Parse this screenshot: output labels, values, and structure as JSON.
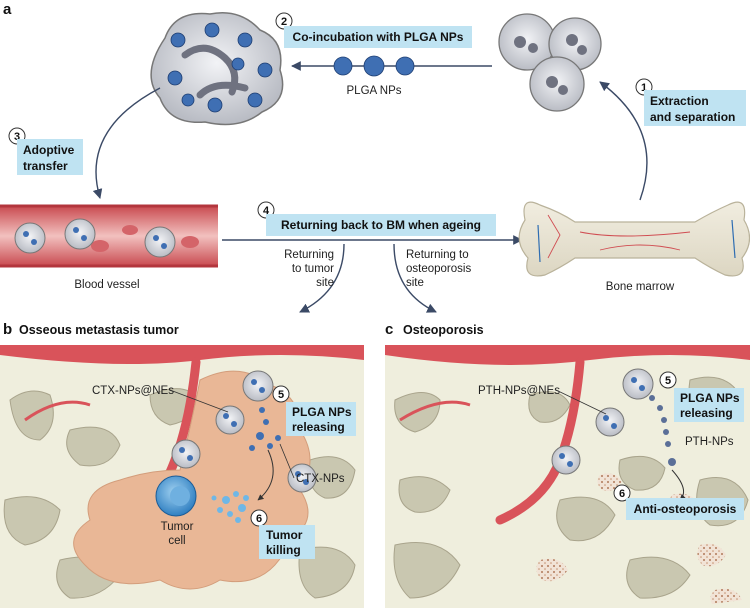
{
  "panel_a": {
    "letter": "a",
    "steps": [
      {
        "num": "1",
        "line1": "Extraction",
        "line2": "and separation"
      },
      {
        "num": "2",
        "line1": "Co-incubation with PLGA NPs"
      },
      {
        "num": "3",
        "line1": "Adoptive",
        "line2": "transfer"
      },
      {
        "num": "4",
        "line1": "Returning back to BM when ageing"
      }
    ],
    "labels": {
      "plga_nps": "PLGA NPs",
      "blood_vessel": "Blood vessel",
      "bone_marrow": "Bone marrow",
      "return_tumor_1": "Returning",
      "return_tumor_2": "to tumor",
      "return_tumor_3": "site",
      "return_osteo_1": "Returning to",
      "return_osteo_2": "osteoporosis",
      "return_osteo_3": "site"
    }
  },
  "panel_b": {
    "letter": "b",
    "title": "Osseous metastasis tumor",
    "labels": {
      "ctx_nps_nes": "CTX-NPs@NEs",
      "ctx_nps": "CTX-NPs",
      "tumor_cell_1": "Tumor",
      "tumor_cell_2": "cell"
    },
    "steps": [
      {
        "num": "5",
        "line1": "PLGA NPs",
        "line2": "releasing"
      },
      {
        "num": "6",
        "line1": "Tumor",
        "line2": "killing"
      }
    ]
  },
  "panel_c": {
    "letter": "c",
    "title": "Osteoporosis",
    "labels": {
      "pth_nps_nes": "PTH-NPs@NEs",
      "pth_nps": "PTH-NPs"
    },
    "steps": [
      {
        "num": "5",
        "line1": "PLGA NPs",
        "line2": "releasing"
      },
      {
        "num": "6",
        "line1": "Anti-osteoporosis"
      }
    ]
  },
  "colors": {
    "label_box": "#bfe3f2",
    "arrow": "#3b4a66",
    "vessel": "#d9535a",
    "tissue": "#efeedd",
    "tumor": "#e9b796",
    "cell_blue": "#3f6fb3"
  }
}
